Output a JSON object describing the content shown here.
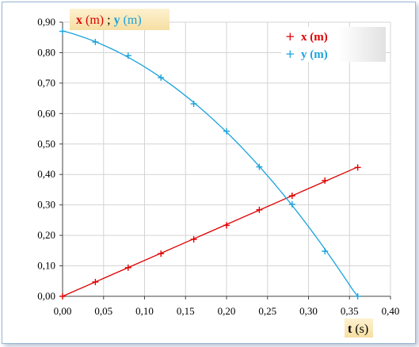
{
  "chart_data": {
    "type": "scatter",
    "ylabel_parts": {
      "x_symbol": "x",
      "x_unit": " (m)",
      "separator": " ; ",
      "y_symbol": "y",
      "y_unit": " (m)"
    },
    "xlabel_parts": {
      "symbol": "t",
      "unit": " (s)"
    },
    "xlim": [
      0,
      0.4
    ],
    "ylim": [
      0,
      0.9
    ],
    "grid": true,
    "legend_position": "top-right",
    "x_ticks": [
      "0,00",
      "0,05",
      "0,10",
      "0,15",
      "0,20",
      "0,25",
      "0,30",
      "0,35",
      "0,40"
    ],
    "y_ticks": [
      "0,00",
      "0,10",
      "0,20",
      "0,30",
      "0,40",
      "0,50",
      "0,60",
      "0,70",
      "0,80",
      "0,90"
    ],
    "series": [
      {
        "name": "x (m)",
        "color": "#e00000",
        "marker": "plus",
        "fit": "linear",
        "x": [
          0.0,
          0.04,
          0.08,
          0.12,
          0.16,
          0.2,
          0.24,
          0.28,
          0.32,
          0.36
        ],
        "y": [
          0.0,
          0.047,
          0.094,
          0.14,
          0.187,
          0.233,
          0.284,
          0.33,
          0.38,
          0.423
        ]
      },
      {
        "name": "y (m)",
        "color": "#1aa3dc",
        "marker": "plus",
        "fit": "parabola",
        "x": [
          0.0,
          0.04,
          0.08,
          0.12,
          0.16,
          0.2,
          0.24,
          0.28,
          0.32,
          0.36
        ],
        "y": [
          0.87,
          0.835,
          0.79,
          0.718,
          0.632,
          0.542,
          0.425,
          0.302,
          0.148,
          0.0
        ]
      }
    ]
  }
}
